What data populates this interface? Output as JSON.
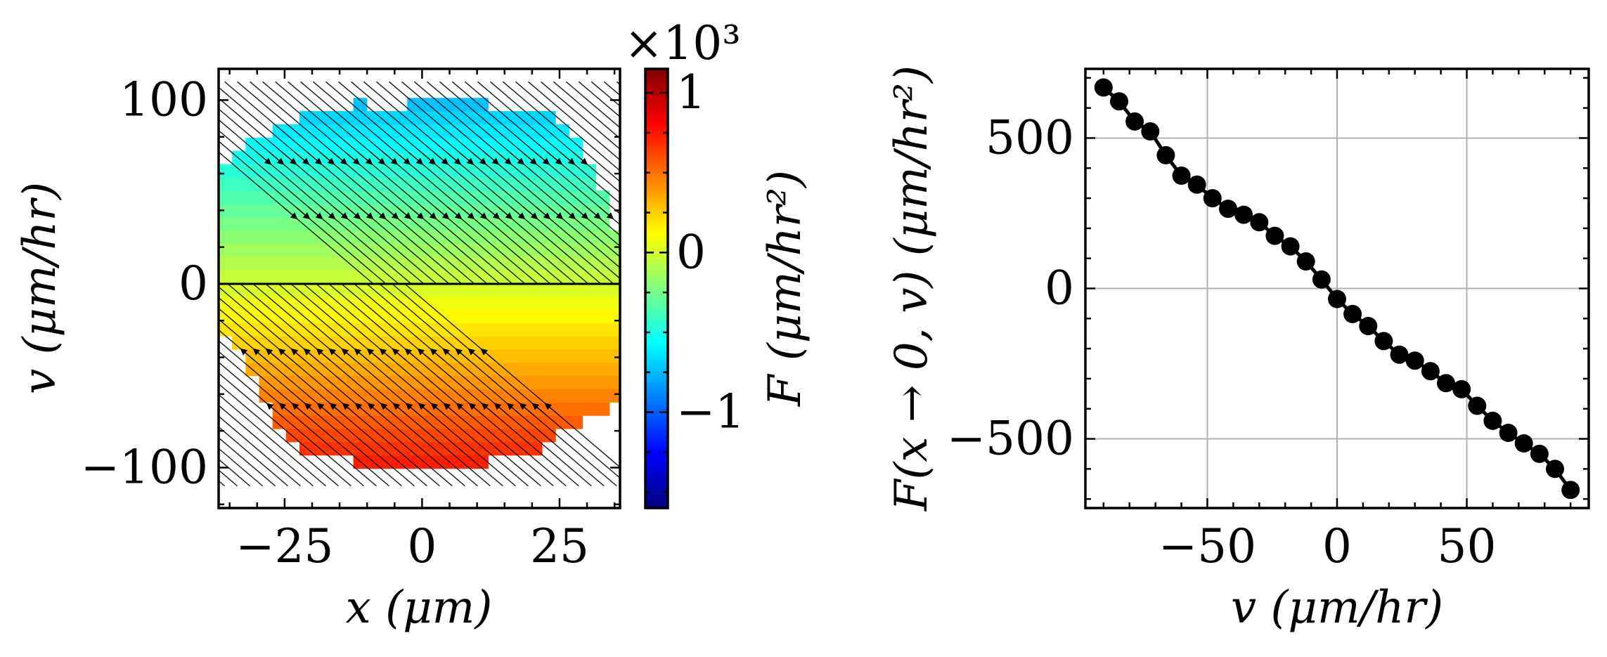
{
  "chart_data": [
    {
      "type": "heatmap",
      "description_kind": "streamline field colored by F",
      "xlabel": "x (μm)",
      "ylabel": "v (μm/hr)",
      "xlim": [
        -37,
        36
      ],
      "ylim": [
        -122,
        117
      ],
      "xticks": [
        -25,
        0,
        25
      ],
      "yticks": [
        -100,
        0,
        100
      ],
      "xtick_labels": [
        "−25",
        "0",
        "25"
      ],
      "ytick_labels": [
        "−100",
        "0",
        "100"
      ],
      "colorbar": {
        "label": "F (μm/hr²)",
        "scale_label": "×10³",
        "min": -1.6,
        "max": 1.15,
        "ticks": [
          -1,
          0,
          1
        ],
        "tick_labels": [
          "−1",
          "0",
          "1"
        ],
        "colormap": [
          "#00007f",
          "#0000ff",
          "#007fff",
          "#00ffff",
          "#7fff7f",
          "#ffff00",
          "#ff7f00",
          "#ff0000",
          "#7f0000"
        ]
      },
      "field": {
        "model": "F = -k * v",
        "k_per_hr": 7.45,
        "v_extent_by_x": [
          {
            "x": -37,
            "vmin": -20,
            "vmax": 68
          },
          {
            "x": -33,
            "vmin": -38,
            "vmax": 70
          },
          {
            "x": -29,
            "vmin": -62,
            "vmax": 82
          },
          {
            "x": -25,
            "vmin": -80,
            "vmax": 88
          },
          {
            "x": -20,
            "vmin": -95,
            "vmax": 94
          },
          {
            "x": -12,
            "vmin": -97,
            "vmax": 98
          },
          {
            "x": -5,
            "vmin": -102,
            "vmax": 97
          },
          {
            "x": 2,
            "vmin": -97,
            "vmax": 99
          },
          {
            "x": 10,
            "vmin": -97,
            "vmax": 98
          },
          {
            "x": 18,
            "vmin": -95,
            "vmax": 96
          },
          {
            "x": 24,
            "vmin": -86,
            "vmax": 90
          },
          {
            "x": 28,
            "vmin": -75,
            "vmax": 78
          },
          {
            "x": 32,
            "vmin": -70,
            "vmax": 62
          },
          {
            "x": 36,
            "vmin": -66,
            "vmax": 20
          }
        ]
      }
    },
    {
      "type": "line",
      "xlabel": "v (μm/hr)",
      "ylabel": "F(x → 0, v) (μm/hr²)",
      "xlim": [
        -97,
        97
      ],
      "ylim": [
        -730,
        730
      ],
      "xticks": [
        -50,
        0,
        50
      ],
      "yticks": [
        -500,
        0,
        500
      ],
      "xtick_labels": [
        "−50",
        "0",
        "50"
      ],
      "ytick_labels": [
        "−500",
        "0",
        "500"
      ],
      "grid": true,
      "series": [
        {
          "name": "F(x→0, v)",
          "marker": "circle",
          "color": "#000000",
          "x": [
            -90,
            -84,
            -78,
            -72,
            -66,
            -60,
            -54,
            -48,
            -42,
            -36,
            -30,
            -24,
            -18,
            -12,
            -6,
            0,
            6,
            12,
            18,
            24,
            30,
            36,
            42,
            48,
            54,
            60,
            66,
            72,
            78,
            84,
            90
          ],
          "y": [
            668,
            622,
            555,
            522,
            443,
            375,
            345,
            300,
            265,
            245,
            220,
            175,
            140,
            90,
            30,
            -35,
            -85,
            -125,
            -175,
            -220,
            -240,
            -275,
            -315,
            -335,
            -390,
            -440,
            -480,
            -515,
            -550,
            -600,
            -670
          ]
        }
      ]
    }
  ]
}
